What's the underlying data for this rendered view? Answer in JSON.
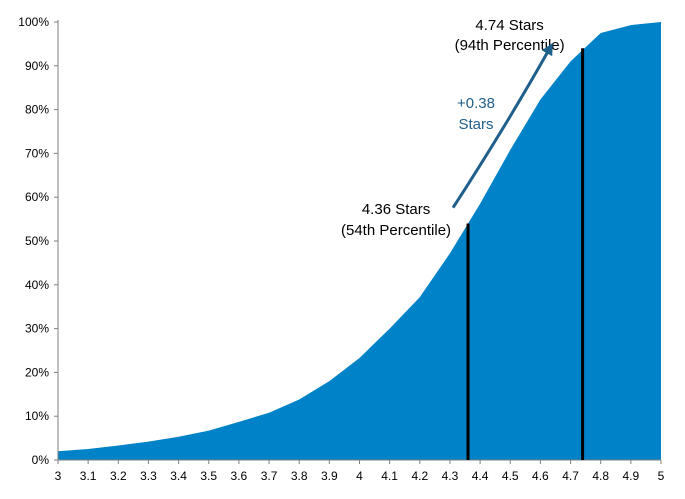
{
  "chart_data": {
    "type": "area",
    "title": "",
    "xlabel": "",
    "ylabel": "",
    "x": [
      3,
      3.1,
      3.2,
      3.3,
      3.4,
      3.5,
      3.6,
      3.7,
      3.8,
      3.9,
      4,
      4.1,
      4.2,
      4.3,
      4.4,
      4.5,
      4.6,
      4.7,
      4.8,
      4.9,
      5
    ],
    "x_tick_labels": [
      "3",
      "3.1",
      "3.2",
      "3.3",
      "3.4",
      "3.5",
      "3.6",
      "3.7",
      "3.8",
      "3.9",
      "4",
      "4.1",
      "4.2",
      "4.3",
      "4.4",
      "4.5",
      "4.6",
      "4.7",
      "4.8",
      "4.9",
      "5"
    ],
    "y": [
      2,
      2.5,
      3.3,
      4.2,
      5.3,
      6.7,
      8.7,
      10.8,
      13.8,
      18,
      23.3,
      30,
      37.2,
      47.2,
      58.5,
      70.8,
      82.3,
      91,
      97.5,
      99.3,
      100
    ],
    "y_tick_labels": [
      "0%",
      "10%",
      "20%",
      "30%",
      "40%",
      "50%",
      "60%",
      "70%",
      "80%",
      "90%",
      "100%"
    ],
    "xlim": [
      3,
      5
    ],
    "ylim": [
      0,
      100
    ],
    "grid": false,
    "legend": "none",
    "fill_color": "#0082c8",
    "markers": [
      {
        "x": 4.36,
        "y": 54,
        "label_line1": "4.36 Stars",
        "label_line2": "(54th Percentile)"
      },
      {
        "x": 4.74,
        "y": 94,
        "label_line1": "4.74 Stars",
        "label_line2": "(94th Percentile)"
      }
    ],
    "arrow": {
      "from_x": 4.36,
      "from_y": 56,
      "to_x": 4.66,
      "to_y": 92,
      "label_line1": "+0.38",
      "label_line2": "Stars",
      "color": "#1f5f8b"
    }
  }
}
